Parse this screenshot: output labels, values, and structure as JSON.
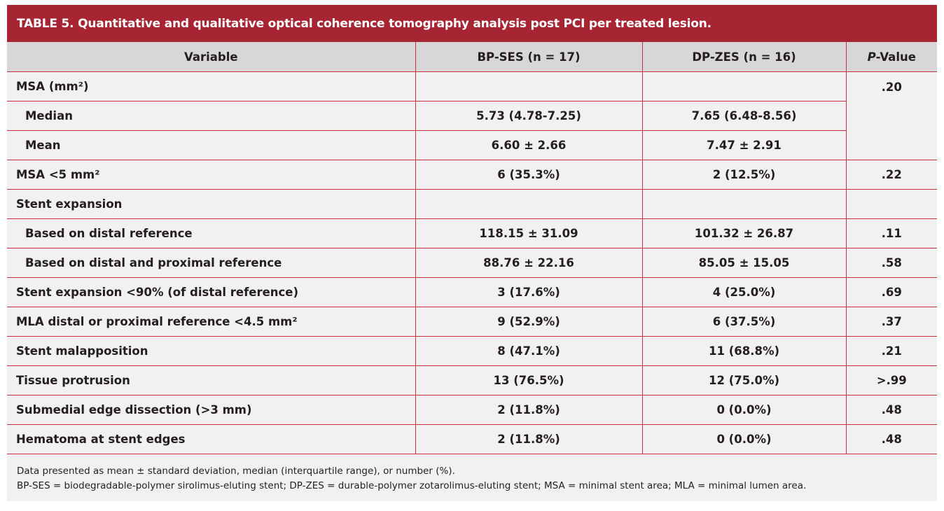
{
  "title": "TABLE 5. Quantitative and qualitative optical coherence tomography analysis post PCI per treated lesion.",
  "headers": {
    "variable": "Variable",
    "bp": "BP-SES (n = 17)",
    "dp": "DP-ZES (n = 16)",
    "p_italic": "P",
    "p_rest": "-Value"
  },
  "rows": [
    {
      "label": "MSA (mm²)",
      "bp": "",
      "dp": "",
      "p": ".20"
    },
    {
      "label": "Median",
      "bp": "5.73 (4.78-7.25)",
      "dp": "7.65 (6.48-8.56)"
    },
    {
      "label": "Mean",
      "bp": "6.60 ± 2.66",
      "dp": "7.47 ± 2.91"
    },
    {
      "label": "MSA <5 mm²",
      "bp": "6 (35.3%)",
      "dp": "2 (12.5%)",
      "p": ".22"
    },
    {
      "label": "Stent expansion",
      "bp": "",
      "dp": "",
      "p": ""
    },
    {
      "label": "Based on distal reference",
      "bp": "118.15 ± 31.09",
      "dp": "101.32 ± 26.87",
      "p": ".11"
    },
    {
      "label": "Based on distal and proximal reference",
      "bp": "88.76 ± 22.16",
      "dp": "85.05 ± 15.05",
      "p": ".58"
    },
    {
      "label": "Stent expansion <90% (of distal reference)",
      "bp": "3 (17.6%)",
      "dp": "4 (25.0%)",
      "p": ".69"
    },
    {
      "label": "MLA distal or proximal reference <4.5 mm²",
      "bp": "9 (52.9%)",
      "dp": "6 (37.5%)",
      "p": ".37"
    },
    {
      "label": "Stent malapposition",
      "bp": "8 (47.1%)",
      "dp": "11 (68.8%)",
      "p": ".21"
    },
    {
      "label": "Tissue protrusion",
      "bp": "13 (76.5%)",
      "dp": "12 (75.0%)",
      "p": ">.99"
    },
    {
      "label": "Submedial edge dissection (>3 mm)",
      "bp": "2 (11.8%)",
      "dp": "0 (0.0%)",
      "p": ".48"
    },
    {
      "label": "Hematoma at stent edges",
      "bp": "2 (11.8%)",
      "dp": "0 (0.0%)",
      "p": ".48"
    }
  ],
  "footnotes": [
    "Data presented as mean ± standard deviation, median (interquartile range), or number (%).",
    "BP-SES = biodegradable-polymer sirolimus-eluting stent; DP-ZES = durable-polymer zotarolimus-eluting stent; MSA = minimal stent area; MLA = minimal lumen area."
  ],
  "colors": {
    "title_bar": "#a72433",
    "header_bg": "#d8d6d8",
    "body_bg": "#f2f0f1",
    "rule": "#c8323e"
  }
}
